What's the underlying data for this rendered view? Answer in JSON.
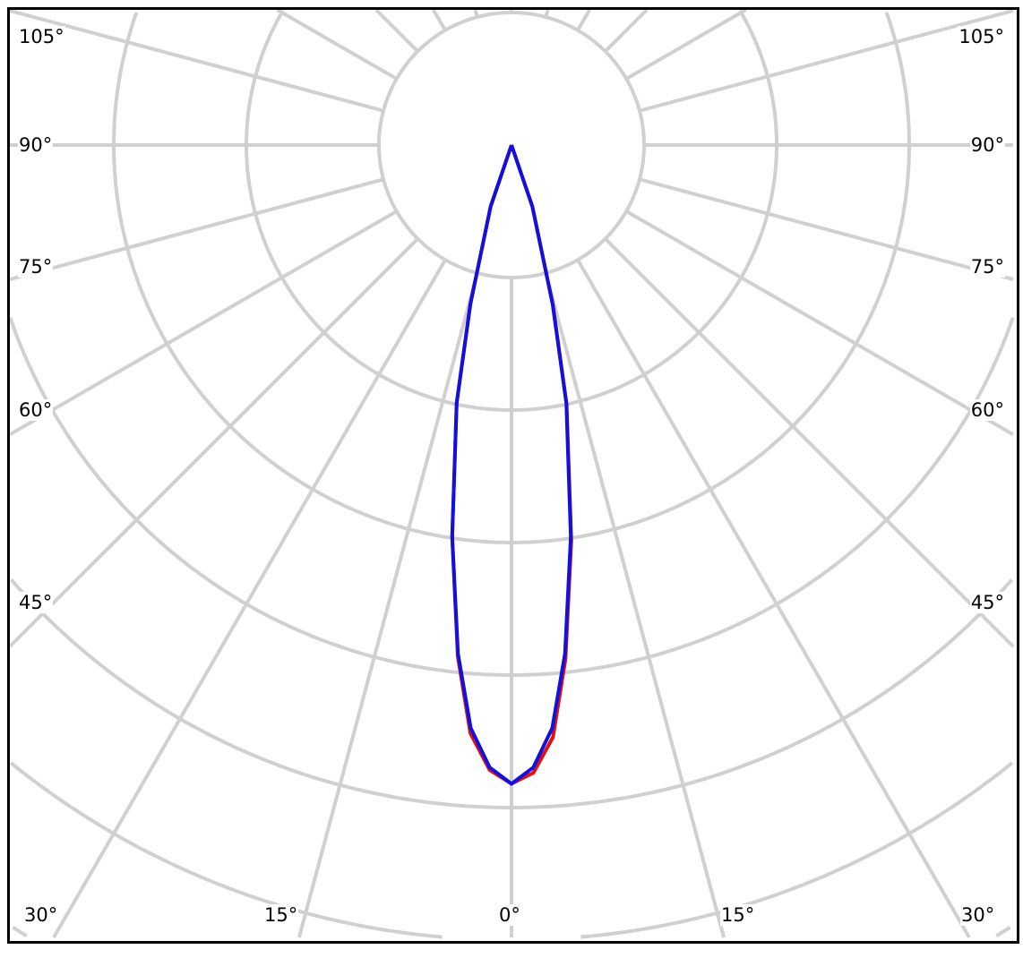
{
  "chart_data": {
    "type": "polar",
    "grid": true,
    "angle_labels_left": [
      "105°",
      "90°",
      "75°",
      "60°",
      "45°"
    ],
    "angle_labels_right": [
      "105°",
      "90°",
      "75°",
      "60°",
      "45°"
    ],
    "angle_labels_bottom": [
      "30°",
      "15°",
      "0°",
      "15°",
      "30°"
    ],
    "angle_step_deg": 15,
    "radial_rings": [
      1,
      2,
      3,
      4,
      5,
      6,
      7
    ],
    "colors": {
      "grid": "#d0d0d0",
      "frame": "#000000"
    },
    "series": [
      {
        "color": "#e01010",
        "angles": [
          -20,
          -18.7,
          -14.5,
          -12,
          -8.6,
          -6,
          -4,
          -2,
          0,
          2,
          4,
          6,
          8.6,
          12,
          14.5,
          18.7,
          20
        ],
        "values": [
          0,
          0.49,
          1.24,
          1.99,
          2.99,
          3.88,
          4.45,
          4.72,
          4.82,
          4.74,
          4.48,
          3.9,
          3.02,
          2.0,
          1.25,
          0.49,
          0
        ]
      },
      {
        "color": "#1010e0",
        "angles": [
          -20,
          -18.7,
          -14.5,
          -12,
          -8.6,
          -6,
          -4,
          -2,
          0,
          2,
          4,
          6,
          8.6,
          12,
          14.5,
          18.7,
          20
        ],
        "values": [
          0,
          0.49,
          1.24,
          1.99,
          2.99,
          3.86,
          4.41,
          4.7,
          4.82,
          4.7,
          4.41,
          3.86,
          2.99,
          1.99,
          1.24,
          0.49,
          0
        ]
      }
    ]
  }
}
